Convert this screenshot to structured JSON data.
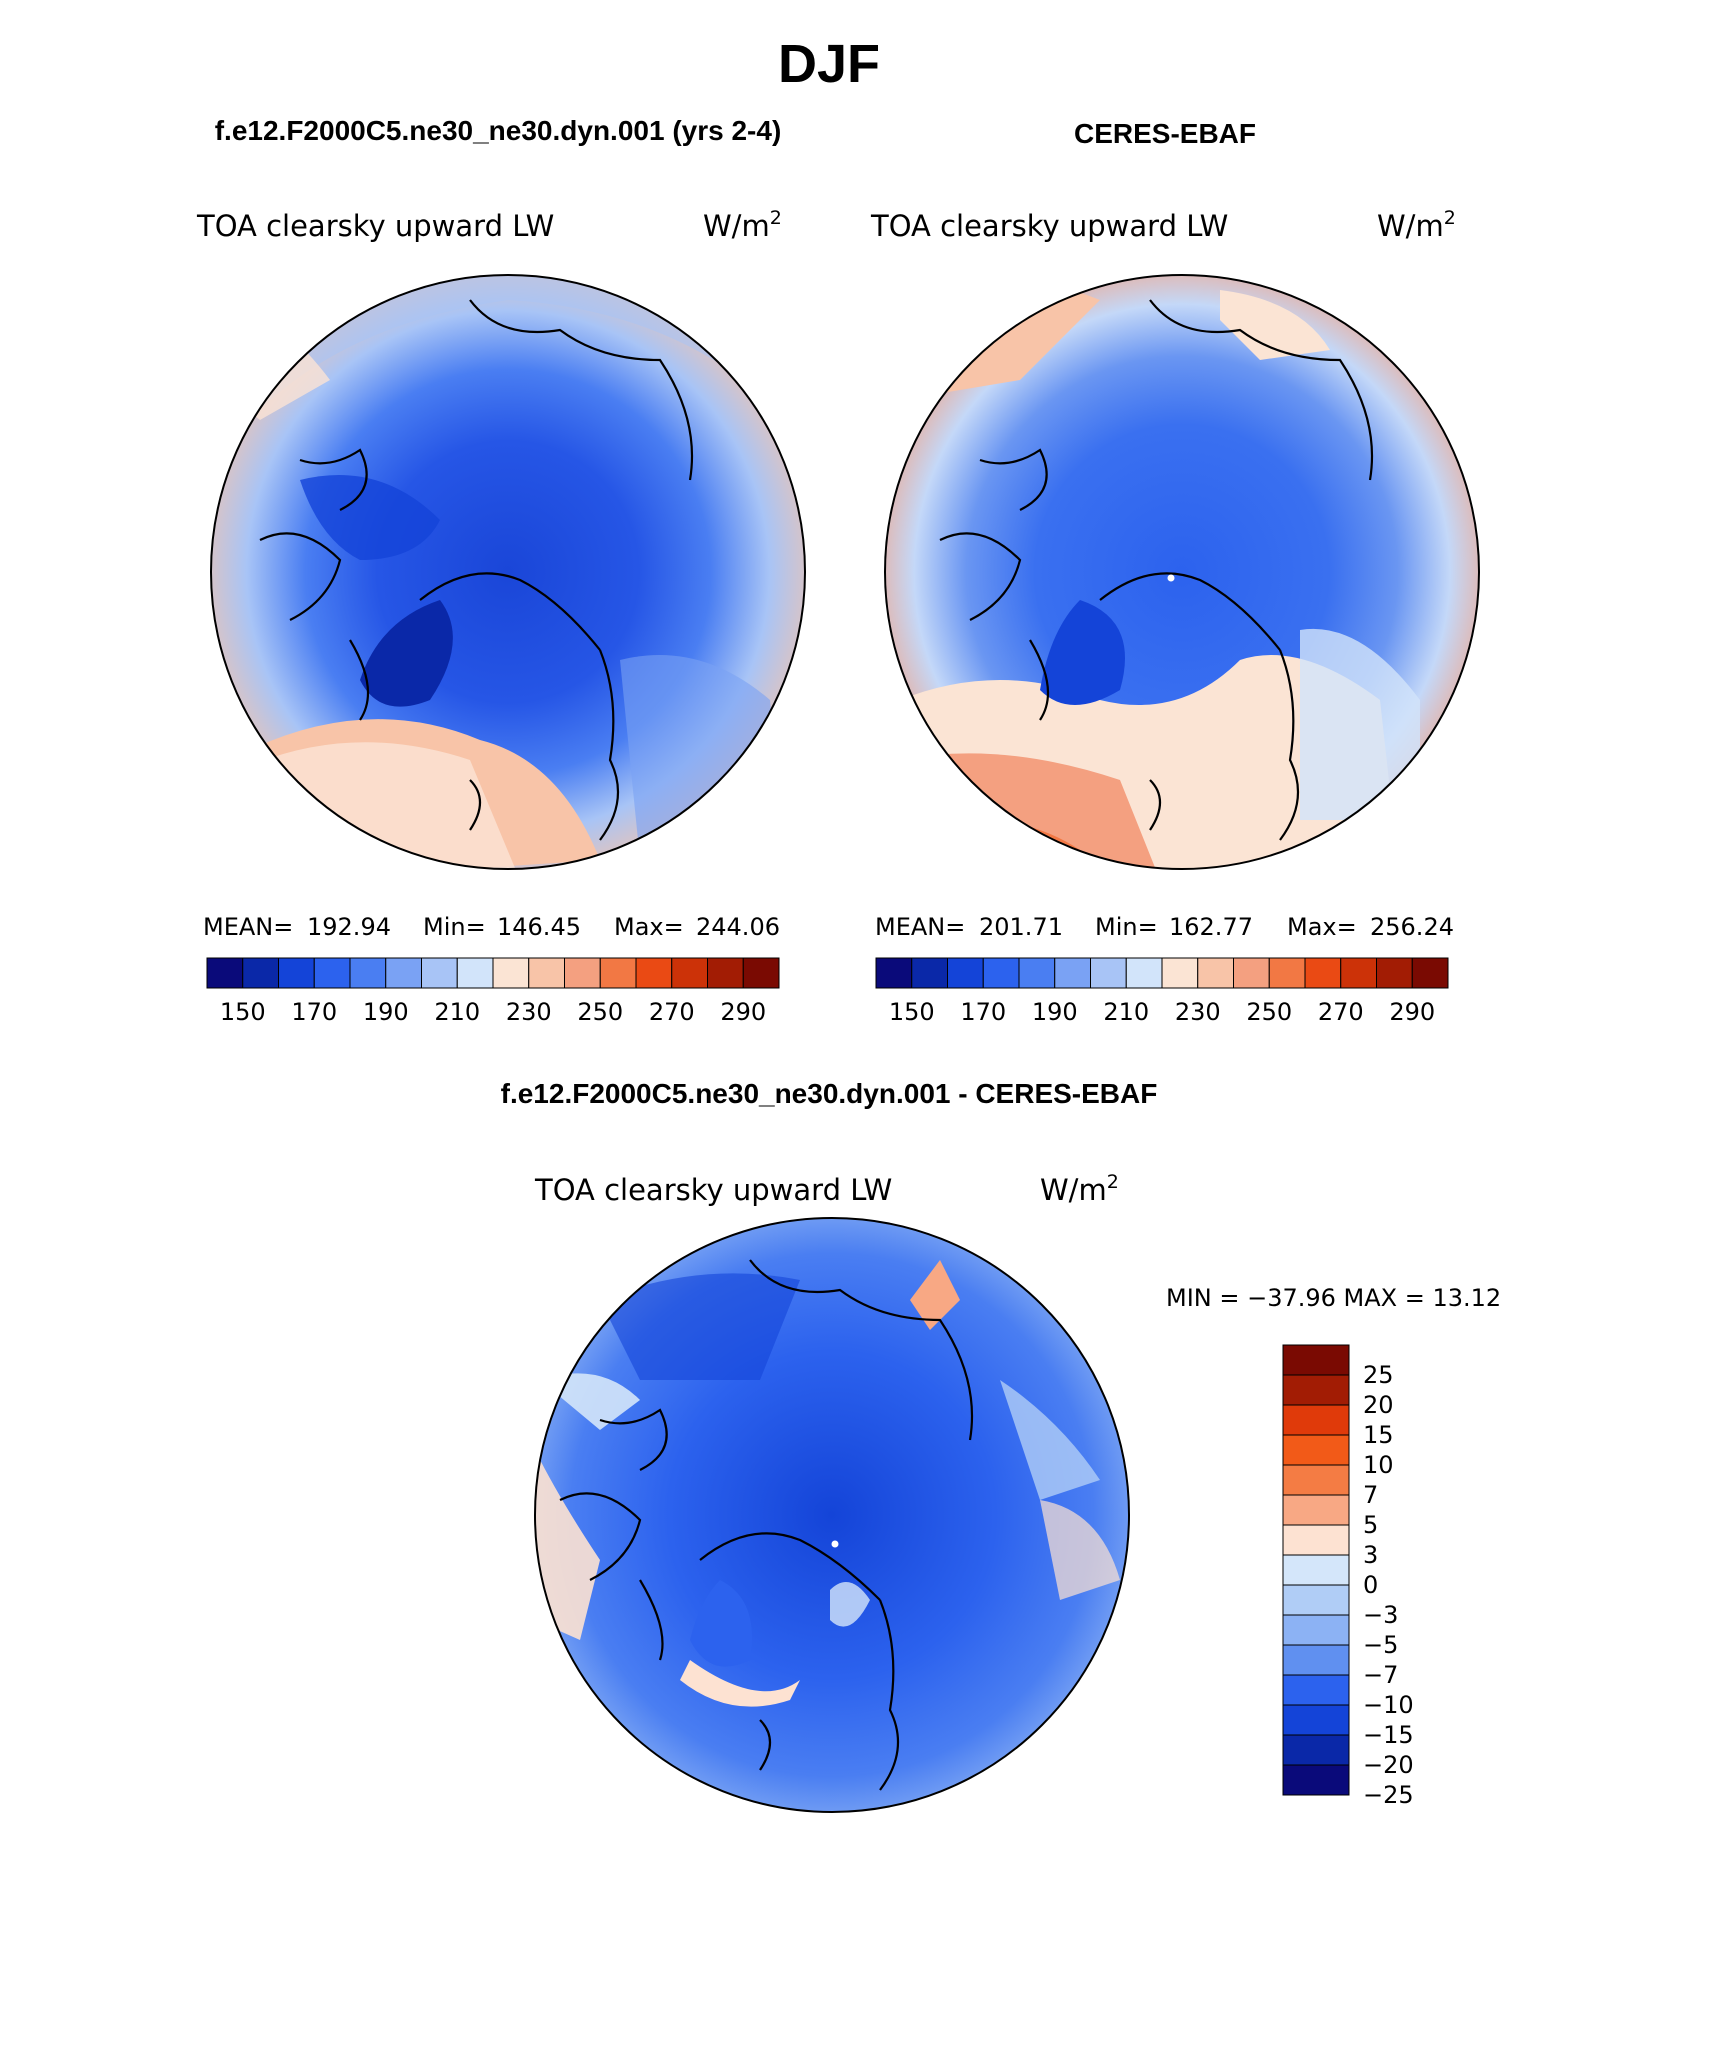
{
  "figure": {
    "title": "DJF",
    "bottom_title": "f.e12.F2000C5.ne30_ne30.dyn.001 - CERES-EBAF"
  },
  "chart_data": [
    {
      "type": "heatmap",
      "projection": "north-polar-stereographic",
      "title": "f.e12.F2000C5.ne30_ne30.dyn.001 (yrs 2-4)",
      "variable": "TOA clearsky upward LW",
      "units_base": "W/m",
      "units_exp": "2",
      "stats": {
        "mean_label": "MEAN=",
        "mean": "192.94",
        "min_label": "Min=",
        "min": "146.45",
        "max_label": "Max=",
        "max": "244.06"
      },
      "colorbar": {
        "orientation": "horizontal",
        "labels": [
          "150",
          "170",
          "190",
          "210",
          "230",
          "250",
          "270",
          "290"
        ],
        "colors": [
          "#0a0a7a",
          "#0a28a8",
          "#1444d8",
          "#2c62ee",
          "#4a7ef2",
          "#7aa2f4",
          "#a8c4f6",
          "#d2e4fa",
          "#fbe4d4",
          "#f8c4a8",
          "#f4a080",
          "#f27844",
          "#ea4a14",
          "#cc3208",
          "#a21c04",
          "#7a0a02"
        ]
      }
    },
    {
      "type": "heatmap",
      "projection": "north-polar-stereographic",
      "title": "CERES-EBAF",
      "variable": "TOA clearsky upward LW",
      "units_base": "W/m",
      "units_exp": "2",
      "stats": {
        "mean_label": "MEAN=",
        "mean": "201.71",
        "min_label": "Min=",
        "min": "162.77",
        "max_label": "Max=",
        "max": "256.24"
      },
      "colorbar": {
        "orientation": "horizontal",
        "labels": [
          "150",
          "170",
          "190",
          "210",
          "230",
          "250",
          "270",
          "290"
        ],
        "colors": [
          "#0a0a7a",
          "#0a28a8",
          "#1444d8",
          "#2c62ee",
          "#4a7ef2",
          "#7aa2f4",
          "#a8c4f6",
          "#d2e4fa",
          "#fbe4d4",
          "#f8c4a8",
          "#f4a080",
          "#f27844",
          "#ea4a14",
          "#cc3208",
          "#a21c04",
          "#7a0a02"
        ]
      }
    },
    {
      "type": "heatmap",
      "projection": "north-polar-stereographic",
      "title": "",
      "variable": "TOA clearsky upward LW",
      "units_base": "W/m",
      "units_exp": "2",
      "stats_text": "MIN = −37.96 MAX =   13.12",
      "colorbar": {
        "orientation": "vertical",
        "labels": [
          "25",
          "20",
          "15",
          "10",
          "7",
          "5",
          "3",
          "0",
          "−3",
          "−5",
          "−7",
          "−10",
          "−15",
          "−20",
          "−25"
        ],
        "colors": [
          "#7a0a02",
          "#a21c04",
          "#e03a0a",
          "#f25a18",
          "#f47c44",
          "#f8a884",
          "#fde2d2",
          "#d4e6fa",
          "#b0cdf6",
          "#8cb2f4",
          "#6090f0",
          "#2c62ee",
          "#1444d8",
          "#0a28a8",
          "#0a0a7a"
        ]
      }
    }
  ]
}
